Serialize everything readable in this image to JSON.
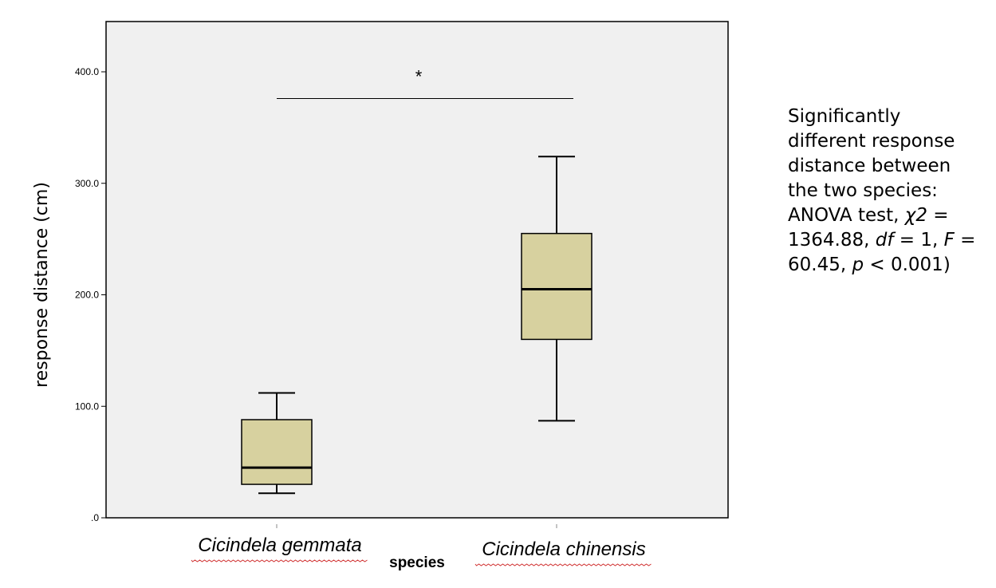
{
  "chart_data": {
    "type": "boxplot",
    "xlabel": "species",
    "ylabel": "response distance (cm)",
    "ylim": [
      0,
      445
    ],
    "yticks": [
      0,
      100,
      200,
      300,
      400
    ],
    "ytick_labels": [
      ".0",
      "100.0",
      "200.0",
      "300.0",
      "400.0"
    ],
    "grid": false,
    "plot_background": "#f0f0f0",
    "box_color": "#d7d19f",
    "categories": [
      "Cicindela gemmata",
      "Cicindela chinensis"
    ],
    "boxes": [
      {
        "category": "Cicindela gemmata",
        "whisker_low": 22,
        "q1": 30,
        "median": 45,
        "q3": 88,
        "whisker_high": 112
      },
      {
        "category": "Cicindela chinensis",
        "whisker_low": 87,
        "q1": 160,
        "median": 205,
        "q3": 255,
        "whisker_high": 324
      }
    ],
    "significance": {
      "label": "*",
      "y": 376,
      "between": [
        "Cicindela gemmata",
        "Cicindela chinensis"
      ]
    }
  },
  "note": {
    "line1": "Significantly",
    "line2": "different response",
    "line3": "distance between",
    "line4": "the two species:",
    "line5_pre": "ANOVA test, ",
    "line5_it": "χ2",
    "line5_post": " =",
    "line6_pre": "1364.88, ",
    "line6_it": "df",
    "line6_mid": " = 1, ",
    "line6_it2": "F",
    "line6_post": " =",
    "line7_pre": "60.45, ",
    "line7_it": "p",
    "line7_post": " < 0.001)"
  }
}
